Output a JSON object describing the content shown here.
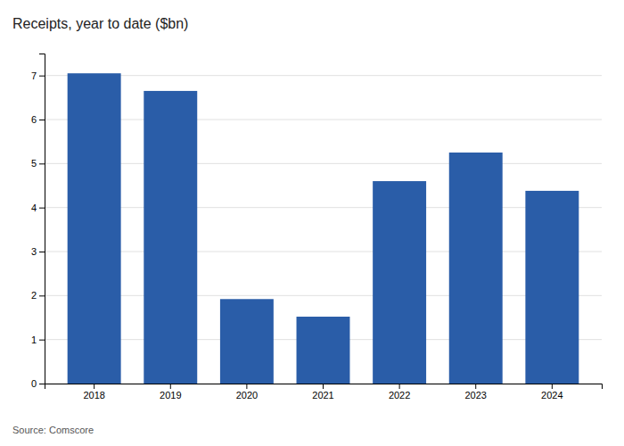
{
  "chart_data": {
    "type": "bar",
    "title": "Receipts, year to date ($bn)",
    "categories": [
      "2018",
      "2019",
      "2020",
      "2021",
      "2022",
      "2023",
      "2024"
    ],
    "values": [
      7.05,
      6.65,
      1.92,
      1.52,
      4.6,
      5.25,
      4.38
    ],
    "color": "#2a5da8",
    "ylim": [
      0,
      7.5
    ],
    "yticks": [
      0,
      1,
      2,
      3,
      4,
      5,
      6,
      7
    ],
    "grid": true,
    "annotations": [
      "Source: Comscore"
    ]
  }
}
